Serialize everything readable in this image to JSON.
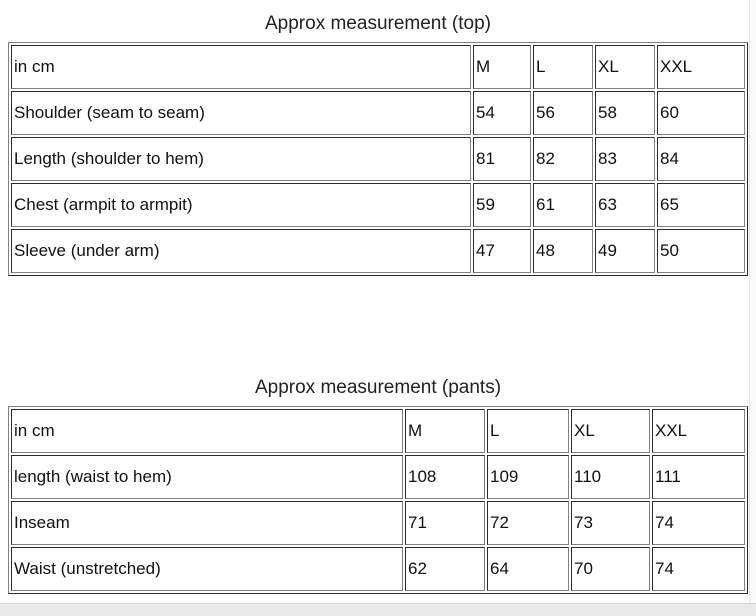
{
  "colors": {
    "table_border": "#808080",
    "text": "#111111",
    "caption_text": "#222222",
    "scrollbar_track": "#e9e9e9",
    "scrollbar_track_border": "#d6d6d6",
    "right_track": "#fafafa",
    "right_track_border": "#e4e4e4",
    "page_background": "#ffffff"
  },
  "tables": [
    {
      "caption": "Approx measurement (top)",
      "unit": "in cm",
      "headers": [
        "in cm",
        "M",
        "L",
        "XL",
        "XXL"
      ],
      "rows": [
        [
          "Shoulder (seam to seam)",
          "54",
          "56",
          "58",
          "60"
        ],
        [
          "Length (shoulder to hem)",
          "81",
          "82",
          "83",
          "84"
        ],
        [
          "Chest (armpit to armpit)",
          "59",
          "61",
          "63",
          "65"
        ],
        [
          "Sleeve (under arm)",
          "47",
          "48",
          "49",
          "50"
        ]
      ]
    },
    {
      "caption": "Approx measurement (pants)",
      "unit": "in cm",
      "headers": [
        "in cm",
        "M",
        "L",
        "XL",
        "XXL"
      ],
      "rows": [
        [
          "length (waist to hem)",
          "108",
          "109",
          "110",
          "111"
        ],
        [
          "Inseam",
          "71",
          "72",
          "73",
          "74"
        ],
        [
          "Waist (unstretched)",
          "62",
          "64",
          "70",
          "74"
        ]
      ]
    }
  ]
}
